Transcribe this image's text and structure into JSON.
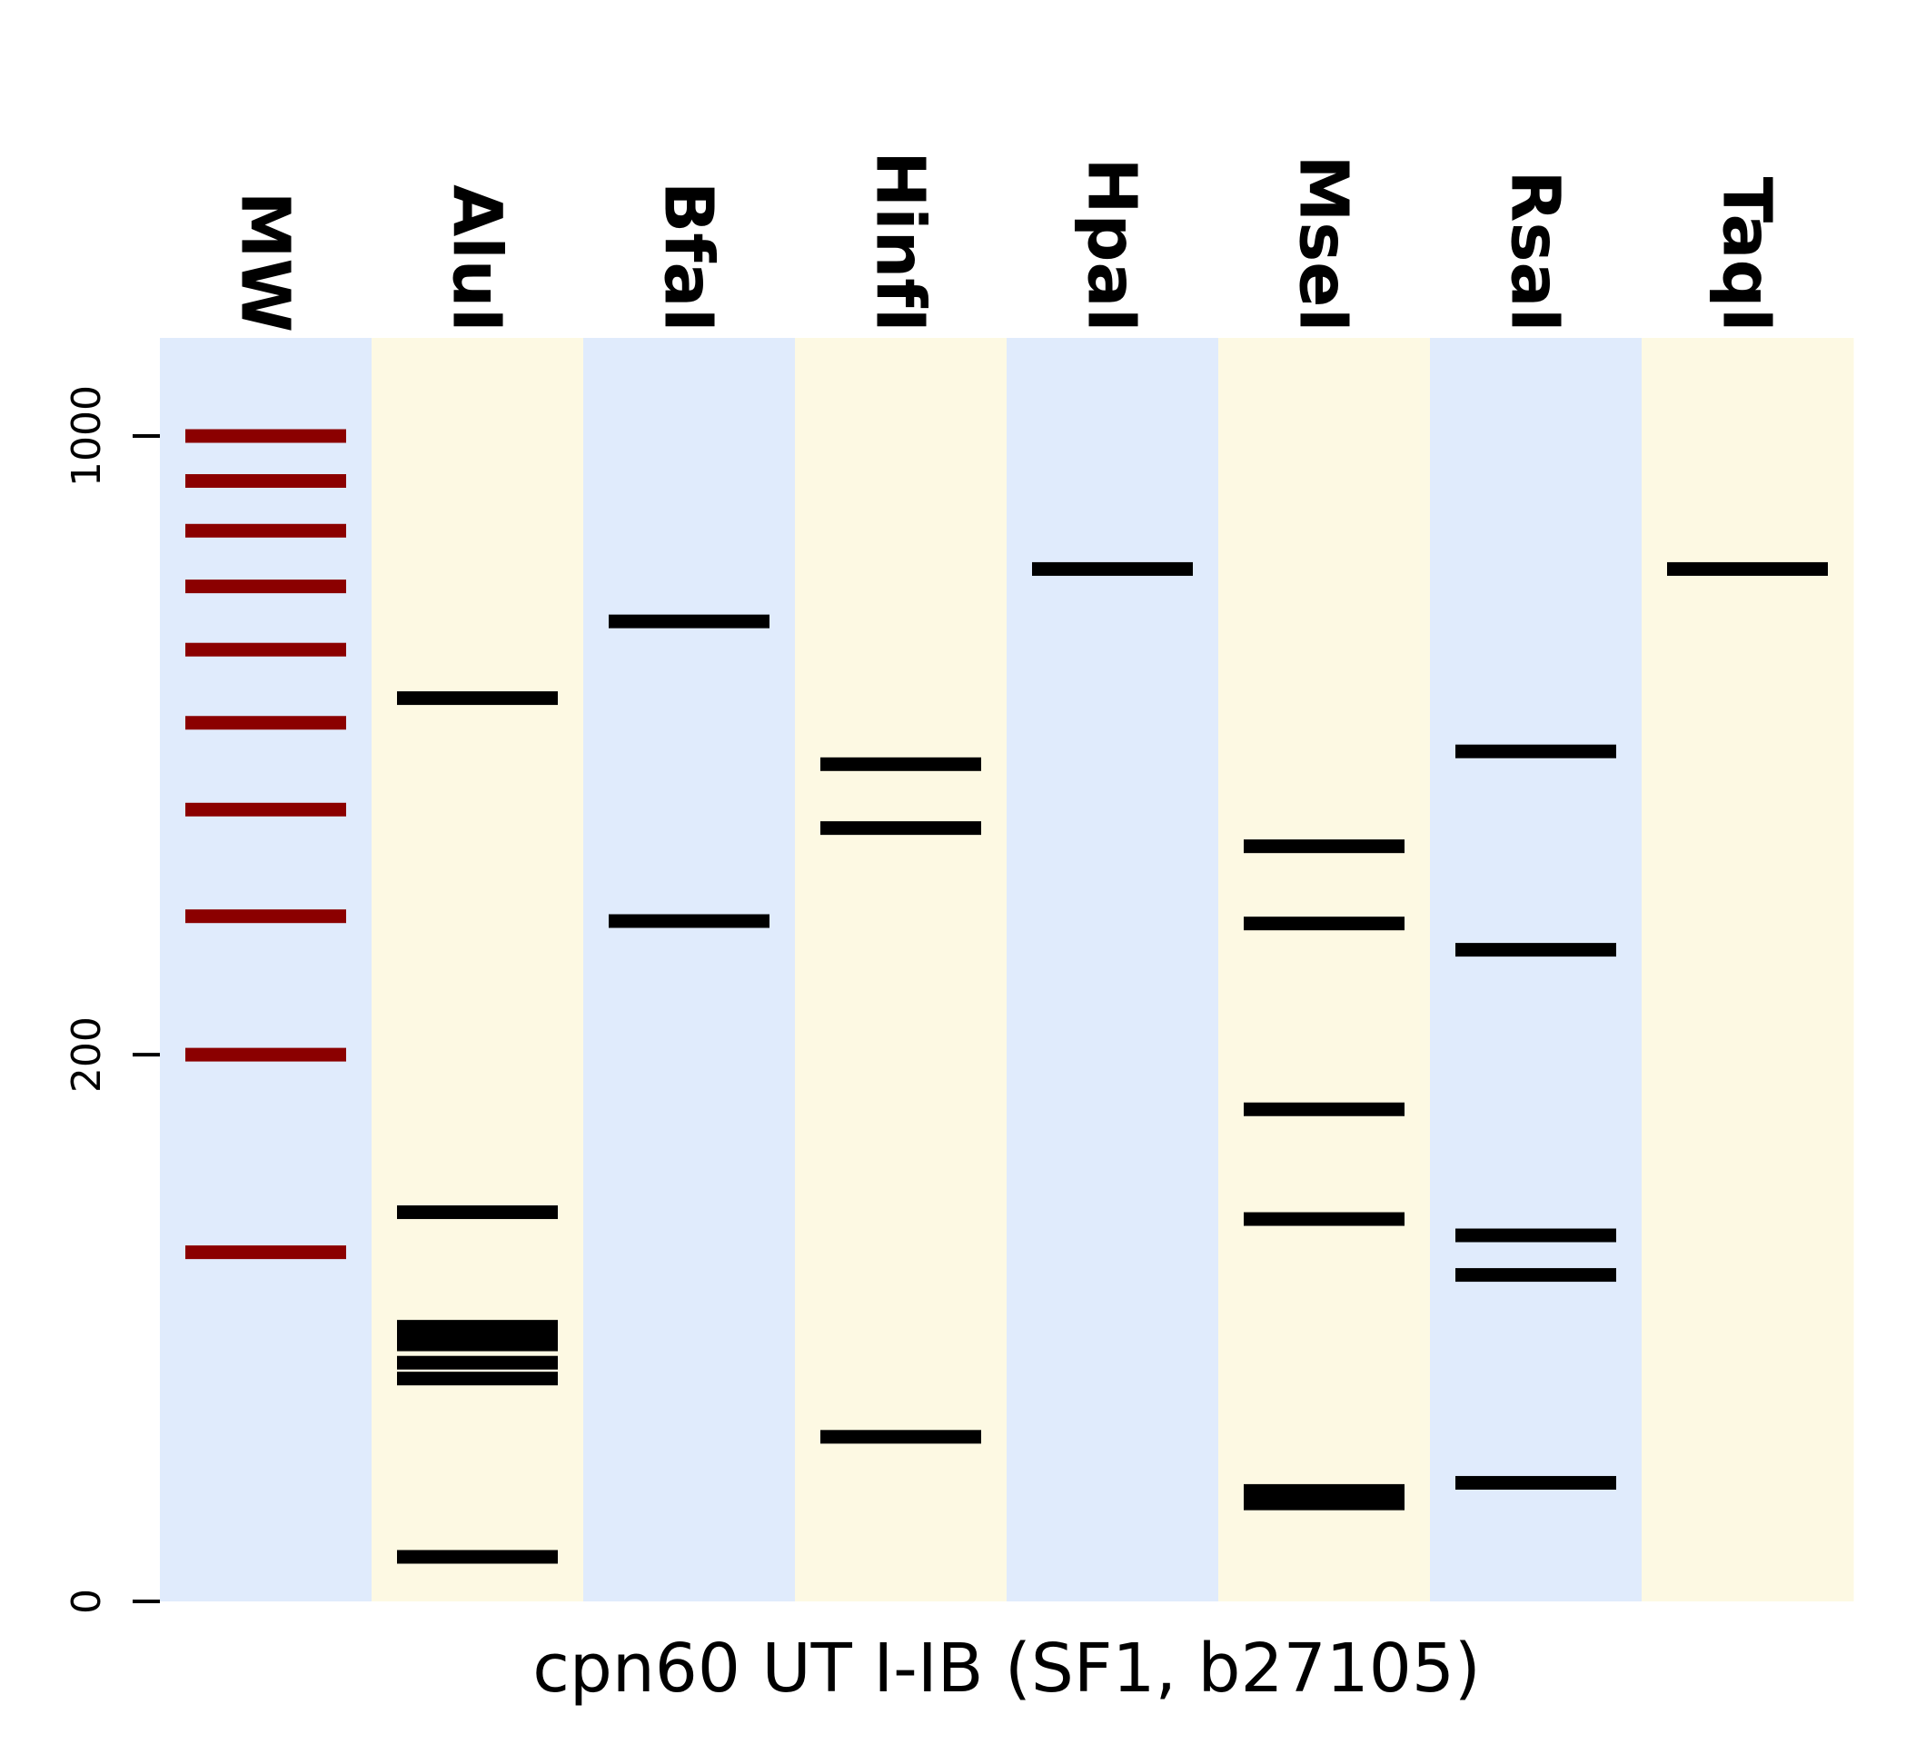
{
  "chart_data": {
    "type": "gel",
    "xlabel": "cpn60 UT I-IB (SF1, b27105)",
    "lanes": [
      "MW",
      "AluI",
      "BfaI",
      "HinfI",
      "HpaI",
      "MseI",
      "RsaI",
      "TaqI"
    ],
    "lane_colors": [
      "#e0ebfc",
      "#fdf9e3"
    ],
    "ylim": [
      0,
      1100
    ],
    "y_ticks": [
      {
        "value": 0,
        "label": "0"
      },
      {
        "value": 200,
        "label": "200"
      },
      {
        "value": 1000,
        "label": "1000"
      }
    ],
    "series": [
      {
        "lane": "MW",
        "color": "#8b0000",
        "bands": [
          1000,
          900,
          800,
          700,
          600,
          500,
          400,
          300,
          200,
          100
        ]
      },
      {
        "lane": "AluI",
        "color": "#000000",
        "bands": [
          532,
          117,
          72,
          69,
          66,
          60,
          55,
          9
        ]
      },
      {
        "lane": "BfaI",
        "color": "#000000",
        "bands": [
          643,
          296
        ]
      },
      {
        "lane": "HinfI",
        "color": "#000000",
        "bands": [
          450,
          381,
          38
        ]
      },
      {
        "lane": "HpaI",
        "color": "#000000",
        "bands": [
          730
        ]
      },
      {
        "lane": "MseI",
        "color": "#000000",
        "bands": [
          363,
          294,
          168,
          114,
          24,
          21
        ]
      },
      {
        "lane": "RsaI",
        "color": "#000000",
        "bands": [
          465,
          273,
          107,
          91,
          26
        ]
      },
      {
        "lane": "TaqI",
        "color": "#000000",
        "bands": [
          730
        ]
      }
    ]
  }
}
